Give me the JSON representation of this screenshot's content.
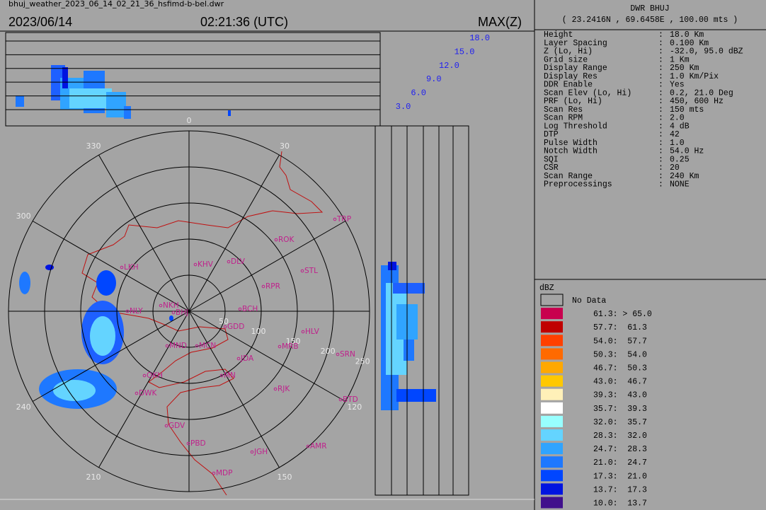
{
  "header": {
    "file": "bhuj_weather_2023_06_14_02_21_36_hsfimd-b-bel.dwr",
    "date": "2023/06/14",
    "time": "02:21:36 (UTC)",
    "product": "MAX(Z)"
  },
  "height_labels": [
    {
      "value": 18,
      "label": "18.0"
    },
    {
      "value": 15,
      "label": "15.0"
    },
    {
      "value": 12,
      "label": "12.0"
    },
    {
      "value": 9,
      "label": "9.0"
    },
    {
      "value": 6,
      "label": "6.0"
    },
    {
      "value": 3,
      "label": "3.0"
    }
  ],
  "azimuth_labels": [
    0,
    30,
    120,
    150,
    210,
    240,
    300,
    330
  ],
  "range_labels": [
    50,
    100,
    150,
    200,
    250
  ],
  "stations": [
    "TRP",
    "ROK",
    "KHV",
    "DLV",
    "LKH",
    "STL",
    "RPR",
    "NLY",
    "NKH",
    "BHJ",
    "BCH",
    "GDD",
    "HLV",
    "MND",
    "MCN",
    "MRB",
    "SRN",
    "JDA",
    "OKH",
    "MN",
    "DWK",
    "RJK",
    "BTD",
    "GDV",
    "PBD",
    "JGH",
    "AMR",
    "MDP"
  ],
  "info": {
    "title": "DWR BHUJ",
    "location": "( 23.2416N , 69.6458E , 100.00 mts )",
    "rows": [
      [
        "Height",
        ":",
        "18.0 Km"
      ],
      [
        "Layer Spacing",
        ":",
        "0.100 Km"
      ],
      [
        "Z (Lo, Hi)",
        ":",
        "-32.0, 95.0 dBZ"
      ],
      [
        "Grid size",
        ":",
        "1 Km"
      ],
      [
        "Display Range",
        ":",
        "250 Km"
      ],
      [
        "Display Res",
        ":",
        "1.0 Km/Pix"
      ],
      [
        "DDR Enable",
        ":",
        "Yes"
      ],
      [
        "Scan Elev (Lo, Hi)",
        ":",
        "0.2, 21.0 Deg"
      ],
      [
        "PRF (Lo, Hi)",
        ":",
        "450, 600 Hz"
      ],
      [
        "Scan Res",
        ":",
        "150 mts"
      ],
      [
        "Scan RPM",
        ":",
        "2.0"
      ],
      [
        "Log Threshold",
        ":",
        "4 dB"
      ],
      [
        "DTP",
        ":",
        "42"
      ],
      [
        "Pulse Width",
        ":",
        "1.0"
      ],
      [
        "Notch Width",
        ":",
        "54.0 Hz"
      ],
      [
        "SQI",
        ":",
        "0.25"
      ],
      [
        "CSR",
        ":",
        "20"
      ],
      [
        "Scan Range",
        ":",
        "240 Km"
      ],
      [
        "Preprocessings",
        ":",
        "NONE"
      ]
    ]
  },
  "legend": {
    "title": "dBZ",
    "items": [
      {
        "label": "No Data",
        "color": "#a4a4a4"
      },
      {
        "label": "61.3: > 65.0",
        "color": "#c8004e"
      },
      {
        "label": "57.7:  61.3",
        "color": "#c00000"
      },
      {
        "label": "54.0:  57.7",
        "color": "#ff4000"
      },
      {
        "label": "50.3:  54.0",
        "color": "#ff6a00"
      },
      {
        "label": "46.7:  50.3",
        "color": "#ffa800"
      },
      {
        "label": "43.0:  46.7",
        "color": "#ffc800"
      },
      {
        "label": "39.3:  43.0",
        "color": "#fff0b8"
      },
      {
        "label": "35.7:  39.3",
        "color": "#ffffff"
      },
      {
        "label": "32.0:  35.7",
        "color": "#98ffff"
      },
      {
        "label": "28.3:  32.0",
        "color": "#64d4ff"
      },
      {
        "label": "24.7:  28.3",
        "color": "#30a4ff"
      },
      {
        "label": "21.0:  24.7",
        "color": "#1e78ff"
      },
      {
        "label": "17.3:  21.0",
        "color": "#0046ff"
      },
      {
        "label": "13.7:  17.3",
        "color": "#0014e0"
      },
      {
        "label": "10.0:  13.7",
        "color": "#40108c"
      }
    ]
  }
}
